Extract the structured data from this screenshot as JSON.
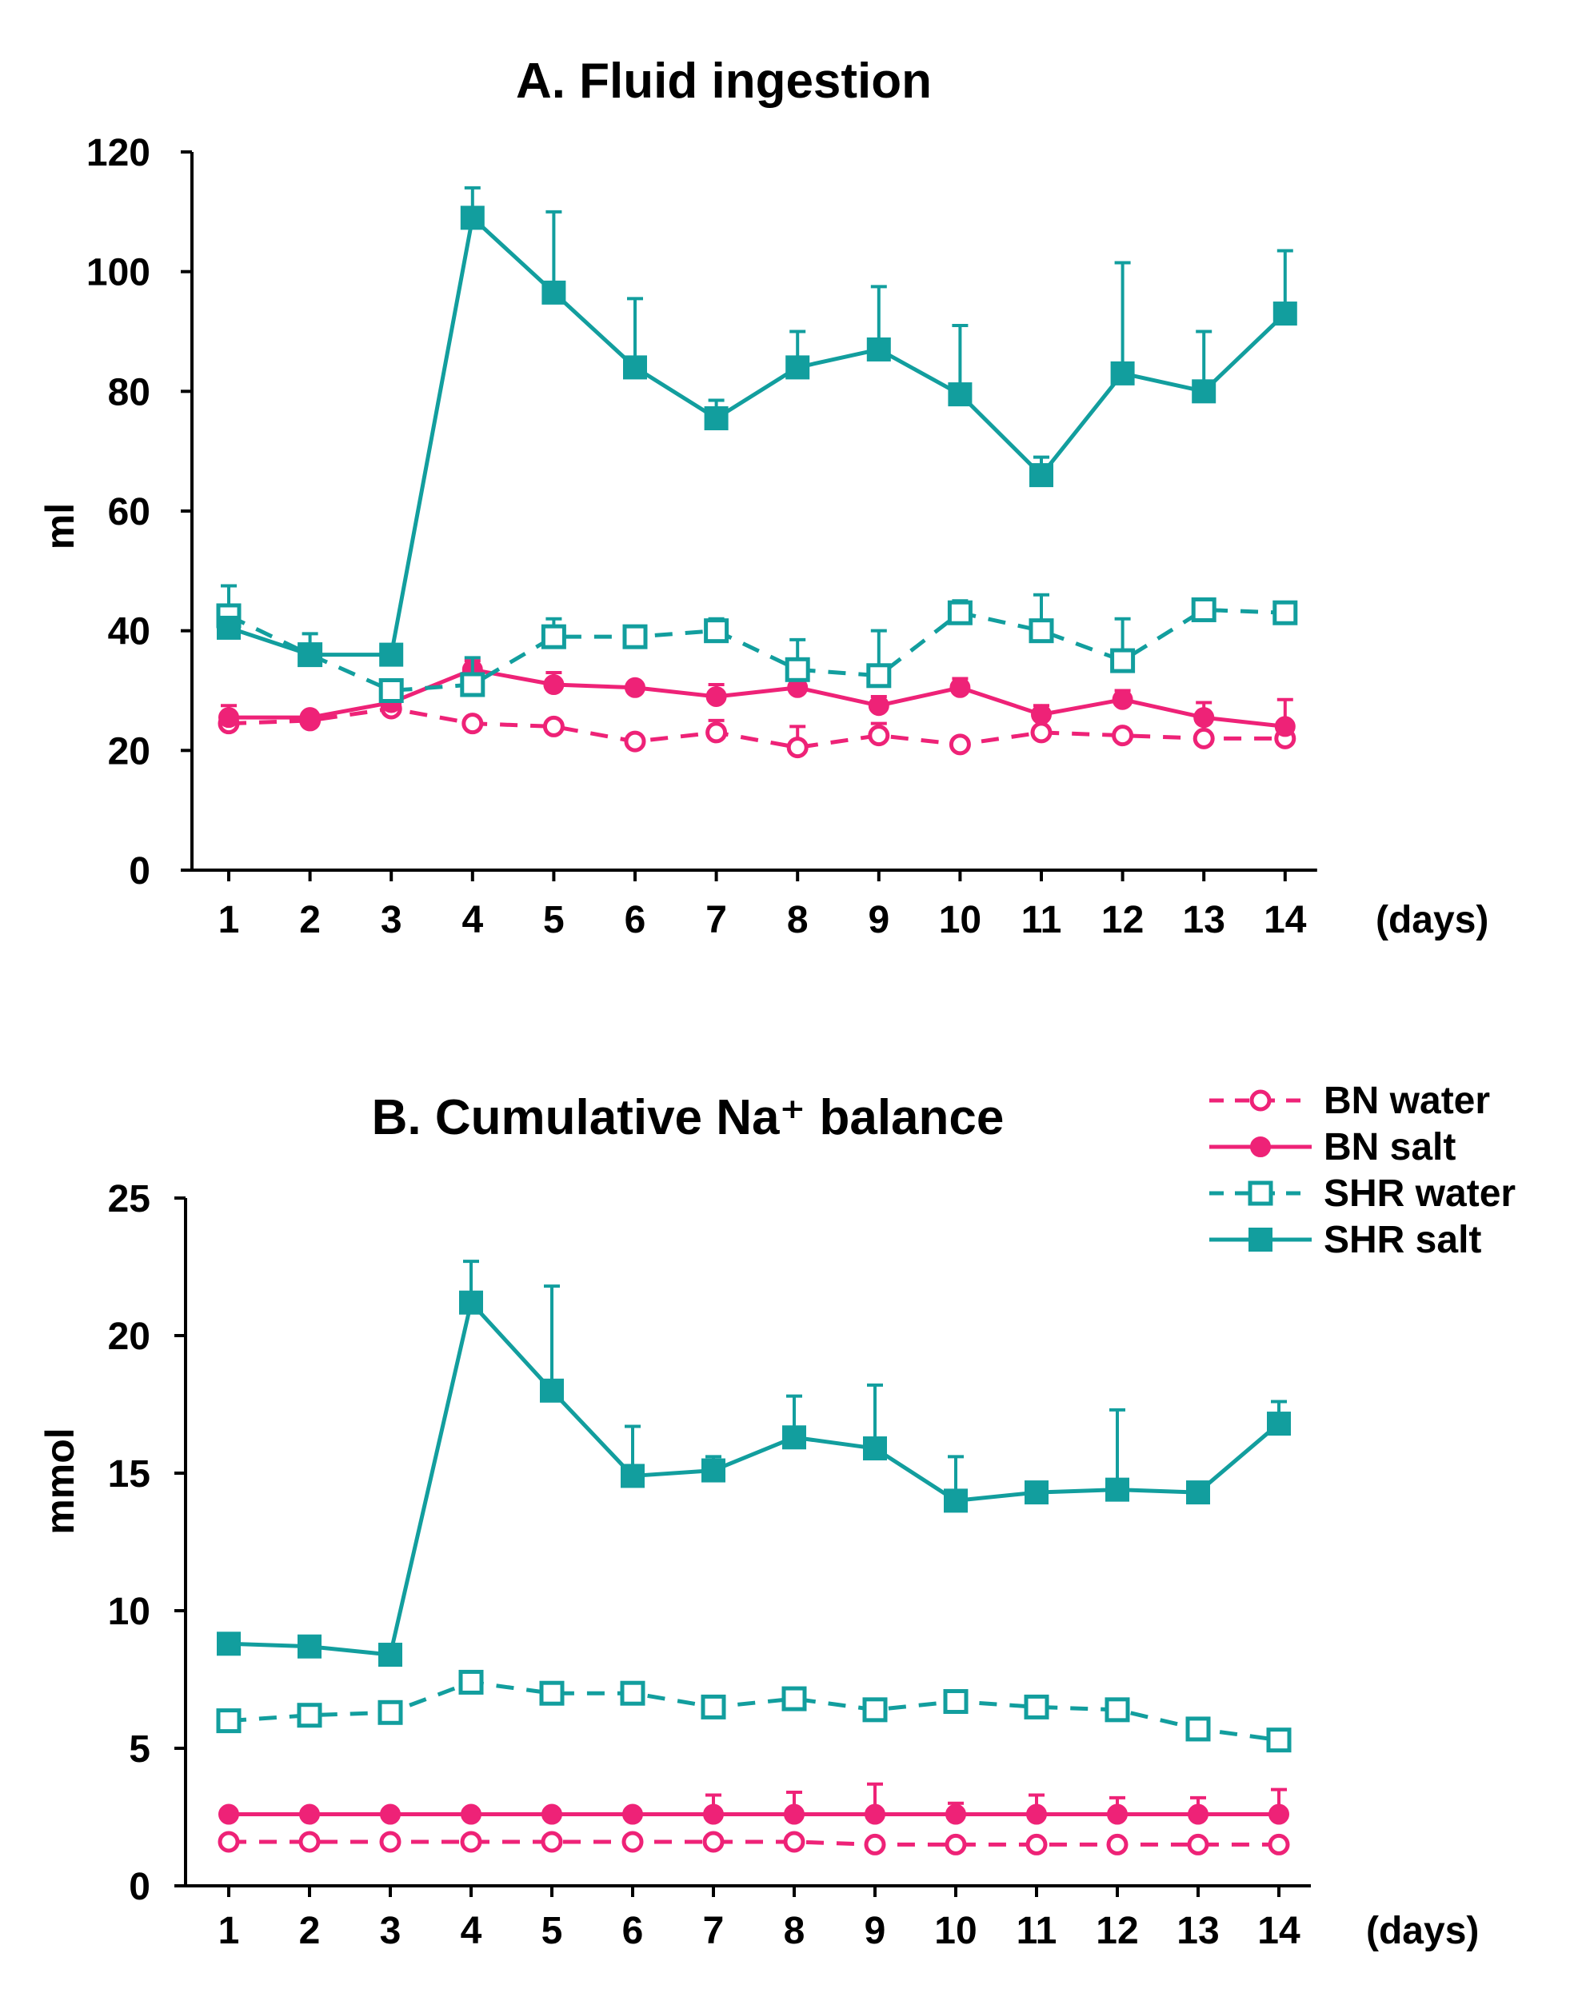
{
  "colors": {
    "bn": "#ee2277",
    "shr": "#129e9e",
    "axis": "#000000"
  },
  "legend": {
    "items": [
      {
        "label": "BN water",
        "series_key": "bn_water"
      },
      {
        "label": "BN salt",
        "series_key": "bn_salt"
      },
      {
        "label": "SHR water",
        "series_key": "shr_water"
      },
      {
        "label": "SHR salt",
        "series_key": "shr_salt"
      }
    ]
  },
  "chart_data": [
    {
      "type": "line",
      "title": "A. Fluid ingestion",
      "xlabel": "(days)",
      "ylabel": "ml",
      "x": [
        1,
        2,
        3,
        4,
        5,
        6,
        7,
        8,
        9,
        10,
        11,
        12,
        13,
        14
      ],
      "ylim": [
        0,
        120
      ],
      "yticks": [
        0,
        20,
        40,
        60,
        80,
        100,
        120
      ],
      "grid": false,
      "series": [
        {
          "name": "BN water",
          "key": "bn_water",
          "color_key": "bn",
          "dashed": true,
          "marker": "circle-open",
          "values": [
            24.5,
            25,
            27,
            24.5,
            24,
            21.5,
            23,
            20.5,
            22.5,
            21,
            23,
            22.5,
            22,
            22
          ],
          "errors": [
            0,
            0,
            0,
            0,
            0,
            0,
            2,
            3.5,
            2,
            0,
            0,
            0,
            0,
            0
          ]
        },
        {
          "name": "BN salt",
          "key": "bn_salt",
          "color_key": "bn",
          "dashed": false,
          "marker": "circle-filled",
          "values": [
            25.5,
            25.5,
            28,
            33.5,
            31,
            30.5,
            29,
            30.5,
            27.5,
            30.5,
            26,
            28.5,
            25.5,
            24
          ],
          "errors": [
            2,
            0,
            0,
            1.5,
            2,
            0,
            2,
            0,
            1.5,
            1.5,
            1.5,
            1.5,
            2.5,
            4.5
          ]
        },
        {
          "name": "SHR water",
          "key": "shr_water",
          "color_key": "shr",
          "dashed": true,
          "marker": "square-open",
          "values": [
            42.5,
            36,
            30,
            31,
            39,
            39,
            40,
            33.5,
            32.5,
            43,
            40,
            35,
            43.5,
            43
          ],
          "errors": [
            5,
            0,
            0,
            4.5,
            3,
            0,
            2,
            5,
            7.5,
            2,
            6,
            7,
            1.5,
            0
          ]
        },
        {
          "name": "SHR salt",
          "key": "shr_salt",
          "color_key": "shr",
          "dashed": false,
          "marker": "square-filled",
          "values": [
            40.5,
            36,
            36,
            109,
            96.5,
            84,
            75.5,
            84,
            87,
            79.5,
            66,
            83,
            80,
            93
          ],
          "errors": [
            0,
            3.5,
            0,
            5,
            13.5,
            11.5,
            3,
            6,
            10.5,
            11.5,
            3,
            18.5,
            10,
            10.5
          ]
        }
      ]
    },
    {
      "type": "line",
      "title": "B. Cumulative Na⁺ balance",
      "xlabel": "(days)",
      "ylabel": "mmol",
      "x": [
        1,
        2,
        3,
        4,
        5,
        6,
        7,
        8,
        9,
        10,
        11,
        12,
        13,
        14
      ],
      "ylim": [
        0,
        25
      ],
      "yticks": [
        0,
        5,
        10,
        15,
        20,
        25
      ],
      "grid": false,
      "series": [
        {
          "name": "BN water",
          "key": "bn_water",
          "color_key": "bn",
          "dashed": true,
          "marker": "circle-open",
          "values": [
            1.6,
            1.6,
            1.6,
            1.6,
            1.6,
            1.6,
            1.6,
            1.6,
            1.5,
            1.5,
            1.5,
            1.5,
            1.5,
            1.5
          ],
          "errors": [
            0,
            0,
            0,
            0,
            0,
            0,
            0,
            0,
            0,
            0,
            0,
            0,
            0,
            0
          ]
        },
        {
          "name": "BN salt",
          "key": "bn_salt",
          "color_key": "bn",
          "dashed": false,
          "marker": "circle-filled",
          "values": [
            2.6,
            2.6,
            2.6,
            2.6,
            2.6,
            2.6,
            2.6,
            2.6,
            2.6,
            2.6,
            2.6,
            2.6,
            2.6,
            2.6
          ],
          "errors": [
            0,
            0,
            0,
            0,
            0,
            0,
            0.7,
            0.8,
            1.1,
            0.4,
            0.7,
            0.6,
            0.6,
            0.9
          ]
        },
        {
          "name": "SHR water",
          "key": "shr_water",
          "color_key": "shr",
          "dashed": true,
          "marker": "square-open",
          "values": [
            6,
            6.2,
            6.3,
            7.4,
            7,
            7,
            6.5,
            6.8,
            6.4,
            6.7,
            6.5,
            6.4,
            5.7,
            5.3
          ],
          "errors": [
            0,
            0,
            0,
            0,
            0,
            0,
            0,
            0,
            0,
            0,
            0,
            0,
            0,
            0
          ]
        },
        {
          "name": "SHR salt",
          "key": "shr_salt",
          "color_key": "shr",
          "dashed": false,
          "marker": "square-filled",
          "values": [
            8.8,
            8.7,
            8.4,
            21.2,
            18,
            14.9,
            15.1,
            16.3,
            15.9,
            14,
            14.3,
            14.4,
            14.3,
            16.8
          ],
          "errors": [
            0,
            0,
            0,
            1.5,
            3.8,
            1.8,
            0.5,
            1.5,
            2.3,
            1.6,
            0,
            2.9,
            0.3,
            0.8
          ]
        }
      ]
    }
  ]
}
